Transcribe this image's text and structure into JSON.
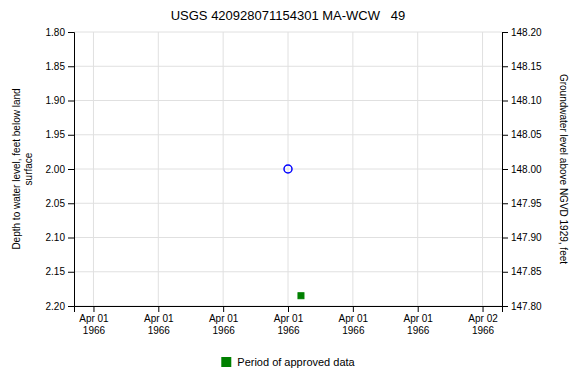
{
  "chart_data": {
    "type": "scatter",
    "title": "USGS 420928071154301 MA-WCW   49",
    "y_label": "Depth to water level, feet below land\n surface",
    "y2_label": "Groundwater level above NGVD 1929, feet",
    "categories": [
      "Apr 01\n1966",
      "Apr 01\n1966",
      "Apr 01\n1966",
      "Apr 01\n1966",
      "Apr 01\n1966",
      "Apr 01\n1966",
      "Apr 02\n1966"
    ],
    "ylim": [
      2.2,
      1.8
    ],
    "yticks": [
      {
        "value": 1.8,
        "label": "1.80"
      },
      {
        "value": 1.85,
        "label": "1.85"
      },
      {
        "value": 1.9,
        "label": "1.90"
      },
      {
        "value": 1.95,
        "label": "1.95"
      },
      {
        "value": 2.0,
        "label": "2.00"
      },
      {
        "value": 2.05,
        "label": "2.05"
      },
      {
        "value": 2.1,
        "label": "2.10"
      },
      {
        "value": 2.15,
        "label": "2.15"
      },
      {
        "value": 2.2,
        "label": "2.20"
      }
    ],
    "y2lim": [
      147.8,
      148.2
    ],
    "y2ticks": [
      {
        "value": 147.8,
        "label": "147.80"
      },
      {
        "value": 147.85,
        "label": "147.85"
      },
      {
        "value": 147.9,
        "label": "147.90"
      },
      {
        "value": 147.95,
        "label": "147.95"
      },
      {
        "value": 148.0,
        "label": "148.00"
      },
      {
        "value": 148.05,
        "label": "148.05"
      },
      {
        "value": 148.1,
        "label": "148.10"
      },
      {
        "value": 148.15,
        "label": "148.15"
      },
      {
        "value": 148.2,
        "label": "148.20"
      }
    ],
    "grid": true,
    "legend": "bottom",
    "series": [
      {
        "color": "#0000ff",
        "marker": "circle",
        "values": [
          null,
          null,
          null,
          2.0,
          null,
          null,
          null
        ]
      },
      {
        "name": "Period of approved data",
        "color": "#008000",
        "marker": "square",
        "values": [
          null,
          null,
          null,
          2.185,
          null,
          null,
          null
        ]
      }
    ]
  }
}
